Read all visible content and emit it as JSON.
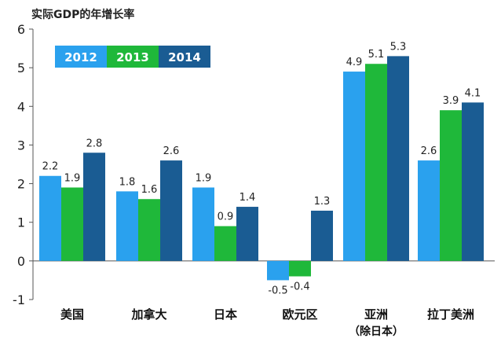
{
  "chart_data": {
    "type": "bar",
    "title": "实际GDP的年增长率",
    "xlabel": "",
    "ylabel": "",
    "ylim": [
      -1,
      6
    ],
    "yticks": [
      "-1",
      "0",
      "1",
      "2",
      "3",
      "4",
      "5",
      "6"
    ],
    "grid": false,
    "legend_position": "top-left",
    "categories": [
      "美国",
      "加拿大",
      "日本",
      "欧元区",
      "亚洲",
      "拉丁美洲"
    ],
    "category_sublabels": [
      "",
      "",
      "",
      "",
      "（除日本）",
      ""
    ],
    "series": [
      {
        "name": "2012",
        "color": "#2aa1ee",
        "values": [
          2.2,
          1.8,
          1.9,
          -0.5,
          4.9,
          2.6
        ]
      },
      {
        "name": "2013",
        "color": "#1fb83a",
        "values": [
          1.9,
          1.6,
          0.9,
          -0.4,
          5.1,
          3.9
        ]
      },
      {
        "name": "2014",
        "color": "#1a5c93",
        "values": [
          2.8,
          2.6,
          1.4,
          1.3,
          5.3,
          4.1
        ]
      }
    ],
    "data_labels": [
      [
        "2.2",
        "1.8",
        "1.9",
        "-0.5",
        "4.9",
        "2.6"
      ],
      [
        "1.9",
        "1.6",
        "0.9",
        "-0.4",
        "5.1",
        "3.9"
      ],
      [
        "2.8",
        "2.6",
        "1.4",
        "1.3",
        "5.3",
        "4.1"
      ]
    ]
  }
}
